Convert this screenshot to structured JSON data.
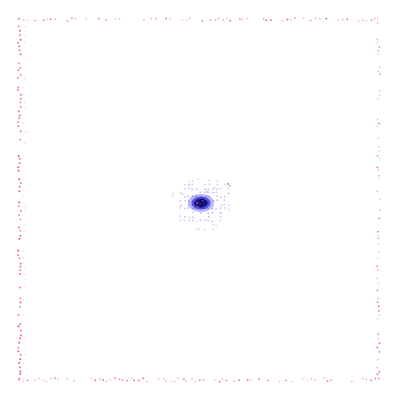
{
  "image": {
    "background_color": "#ffffff",
    "frame": {
      "style": "dotted-border",
      "color": "#e8506a",
      "secondary_color": "#f5a3b3"
    },
    "center_blob": {
      "description_color_core": "#10107a",
      "description_color_mid": "#3a3adf",
      "halo_color": "#8f8ff2",
      "accent_color": "#e0457a",
      "small_mark_color": "#4aa84a"
    }
  }
}
